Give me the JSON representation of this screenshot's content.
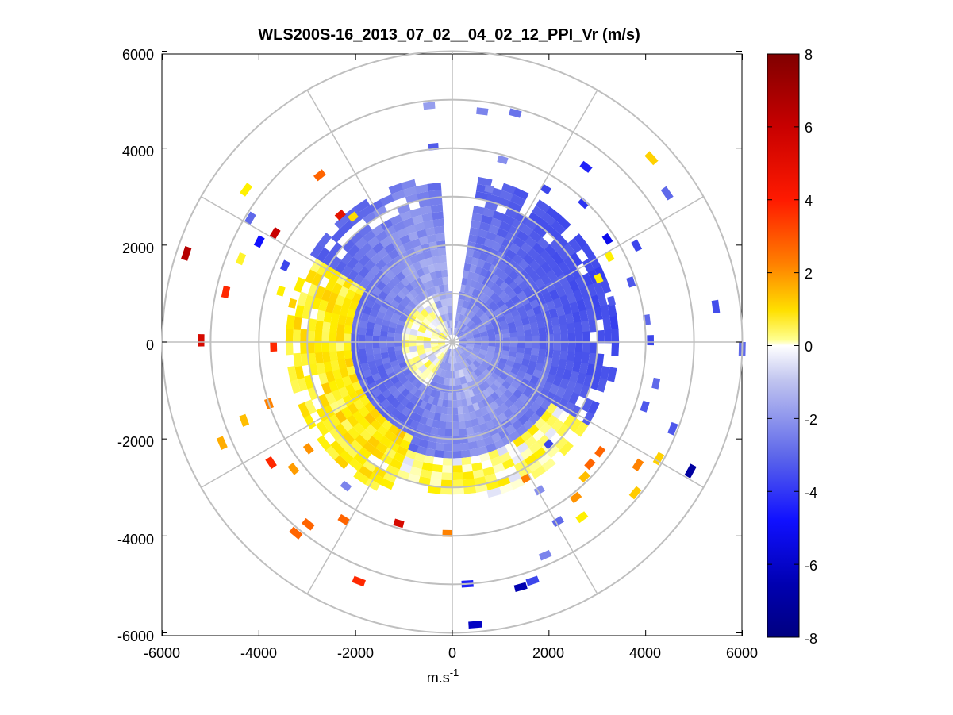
{
  "chart_data": {
    "type": "polar-ppi-heatmap",
    "title": "WLS200S-16_2013_07_02__04_02_12_PPI_Vr (m/s)",
    "xlabel_base": "m.s",
    "xlabel_exp": "-1",
    "xlim": [
      -6000,
      6000
    ],
    "ylim": [
      -6000,
      6000
    ],
    "xticks": [
      "-6000",
      "-4000",
      "-2000",
      "0",
      "2000",
      "4000",
      "6000"
    ],
    "yticks": [
      "6000",
      "4000",
      "2000",
      "0",
      "-2000",
      "-4000",
      "-6000"
    ],
    "range_rings_m": [
      1000,
      2000,
      3000,
      4000,
      5000,
      6000
    ],
    "spoke_angles_deg": [
      0,
      30,
      60,
      90,
      120,
      150,
      180,
      210,
      240,
      270,
      300,
      330
    ],
    "colorbar": {
      "min": -8,
      "max": 8,
      "ticks": [
        "8",
        "6",
        "4",
        "2",
        "0",
        "-2",
        "-4",
        "-6",
        "-8"
      ],
      "colormap": "blue-white-yellow-red"
    },
    "data_gap_azimuth_deg": [
      -6,
      6
    ],
    "dense_max_range_m": 3400
  }
}
